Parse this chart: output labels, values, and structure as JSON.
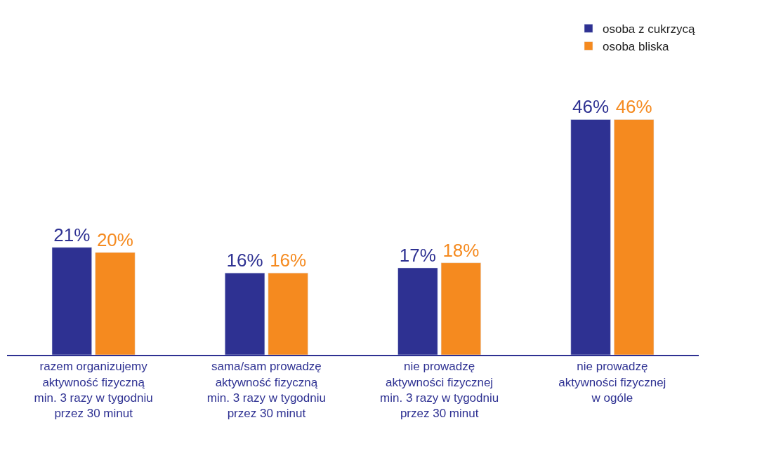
{
  "chart_data": {
    "type": "bar",
    "categories": [
      "razem organizujemy\naktywność fizyczną\nmin. 3 razy w tygodniu\nprzez 30 minut",
      "sama/sam prowadzę\naktywność fizyczną\nmin. 3 razy w tygodniu\nprzez 30 minut",
      "nie prowadzę\naktywności fizycznej\nmin. 3 razy w tygodniu\nprzez 30 minut",
      "nie prowadzę\naktywności fizycznej\nw ogóle"
    ],
    "series": [
      {
        "name": "osoba z cukrzycą",
        "color": "#2e3192",
        "values": [
          21,
          16,
          17,
          46
        ],
        "value_labels": [
          "21%",
          "16%",
          "17%",
          "46%"
        ]
      },
      {
        "name": "osoba bliska",
        "color": "#f58a1f",
        "values": [
          20,
          16,
          18,
          46
        ],
        "value_labels": [
          "20%",
          "16%",
          "18%",
          "46%"
        ]
      }
    ],
    "legend": "top right"
  }
}
